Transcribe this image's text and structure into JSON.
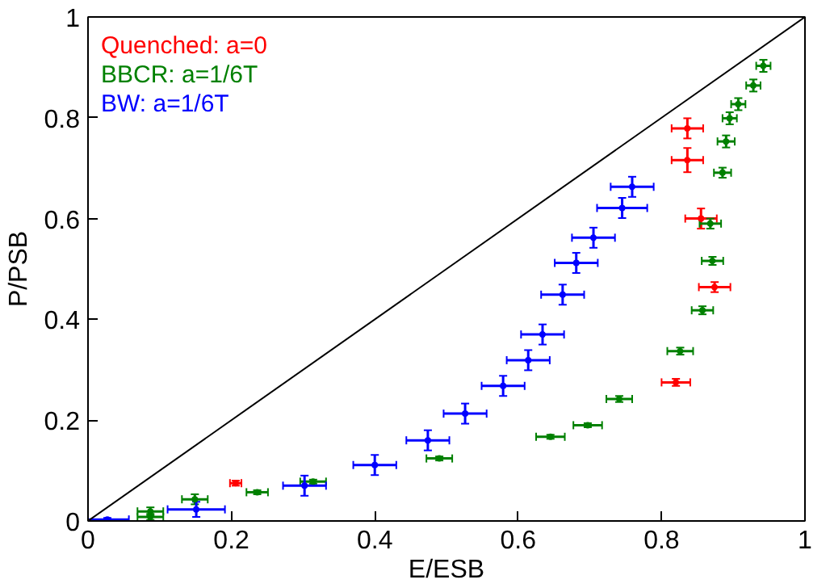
{
  "chart_data": {
    "type": "scatter",
    "xlabel": "E/ESB",
    "ylabel": "P/PSB",
    "xlim": [
      0,
      1
    ],
    "ylim": [
      0,
      1
    ],
    "xticks": [
      0,
      0.2,
      0.4,
      0.6,
      0.8,
      1
    ],
    "yticks": [
      0,
      0.2,
      0.4,
      0.6,
      0.8,
      1
    ],
    "grid": false,
    "legend": "top left",
    "marker": "circle",
    "series": [
      {
        "type": "line",
        "marker": "none",
        "color": "#000000",
        "x": [
          0,
          1
        ],
        "values": [
          0,
          1
        ]
      },
      {
        "name": "Quenched: a=0",
        "color": "#ff0000",
        "x": [
          0.206,
          0.82,
          0.874,
          0.855,
          0.836,
          0.836
        ],
        "values": [
          0.075,
          0.275,
          0.464,
          0.6,
          0.716,
          0.779
        ],
        "xerrors": [
          0.008,
          0.02,
          0.022,
          0.022,
          0.022,
          0.022
        ],
        "errors": [
          0.005,
          0.007,
          0.01,
          0.02,
          0.024,
          0.02
        ]
      },
      {
        "name": "BBCR: a=1/6T",
        "color": "#008000",
        "x": [
          0.087,
          0.087,
          0.149,
          0.236,
          0.314,
          0.49,
          0.645,
          0.697,
          0.741,
          0.826,
          0.857,
          0.868,
          0.871,
          0.885,
          0.89,
          0.895,
          0.907,
          0.928,
          0.942
        ],
        "values": [
          0.019,
          0.008,
          0.043,
          0.057,
          0.078,
          0.124,
          0.167,
          0.19,
          0.242,
          0.337,
          0.418,
          0.59,
          0.516,
          0.691,
          0.753,
          0.799,
          0.827,
          0.864,
          0.903
        ],
        "xerrors": [
          0.018,
          0.018,
          0.018,
          0.015,
          0.018,
          0.018,
          0.02,
          0.02,
          0.018,
          0.018,
          0.015,
          0.015,
          0.015,
          0.012,
          0.012,
          0.01,
          0.01,
          0.01,
          0.01
        ],
        "errors": [
          0.008,
          0.006,
          0.01,
          0.004,
          0.004,
          0.004,
          0.004,
          0.004,
          0.006,
          0.007,
          0.008,
          0.01,
          0.008,
          0.01,
          0.012,
          0.012,
          0.012,
          0.012,
          0.012
        ]
      },
      {
        "name": "BW: a=1/6T",
        "color": "#0000ff",
        "x": [
          0.027,
          0.151,
          0.302,
          0.4,
          0.474,
          0.526,
          0.579,
          0.614,
          0.634,
          0.662,
          0.681,
          0.705,
          0.745,
          0.759
        ],
        "values": [
          0.003,
          0.023,
          0.07,
          0.111,
          0.16,
          0.213,
          0.268,
          0.319,
          0.37,
          0.449,
          0.512,
          0.562,
          0.621,
          0.663
        ],
        "xerrors": [
          0.03,
          0.04,
          0.03,
          0.03,
          0.03,
          0.03,
          0.03,
          0.03,
          0.03,
          0.03,
          0.03,
          0.03,
          0.035,
          0.03
        ],
        "errors": [
          0.003,
          0.015,
          0.02,
          0.02,
          0.02,
          0.02,
          0.02,
          0.02,
          0.02,
          0.02,
          0.02,
          0.02,
          0.02,
          0.02
        ]
      }
    ]
  }
}
